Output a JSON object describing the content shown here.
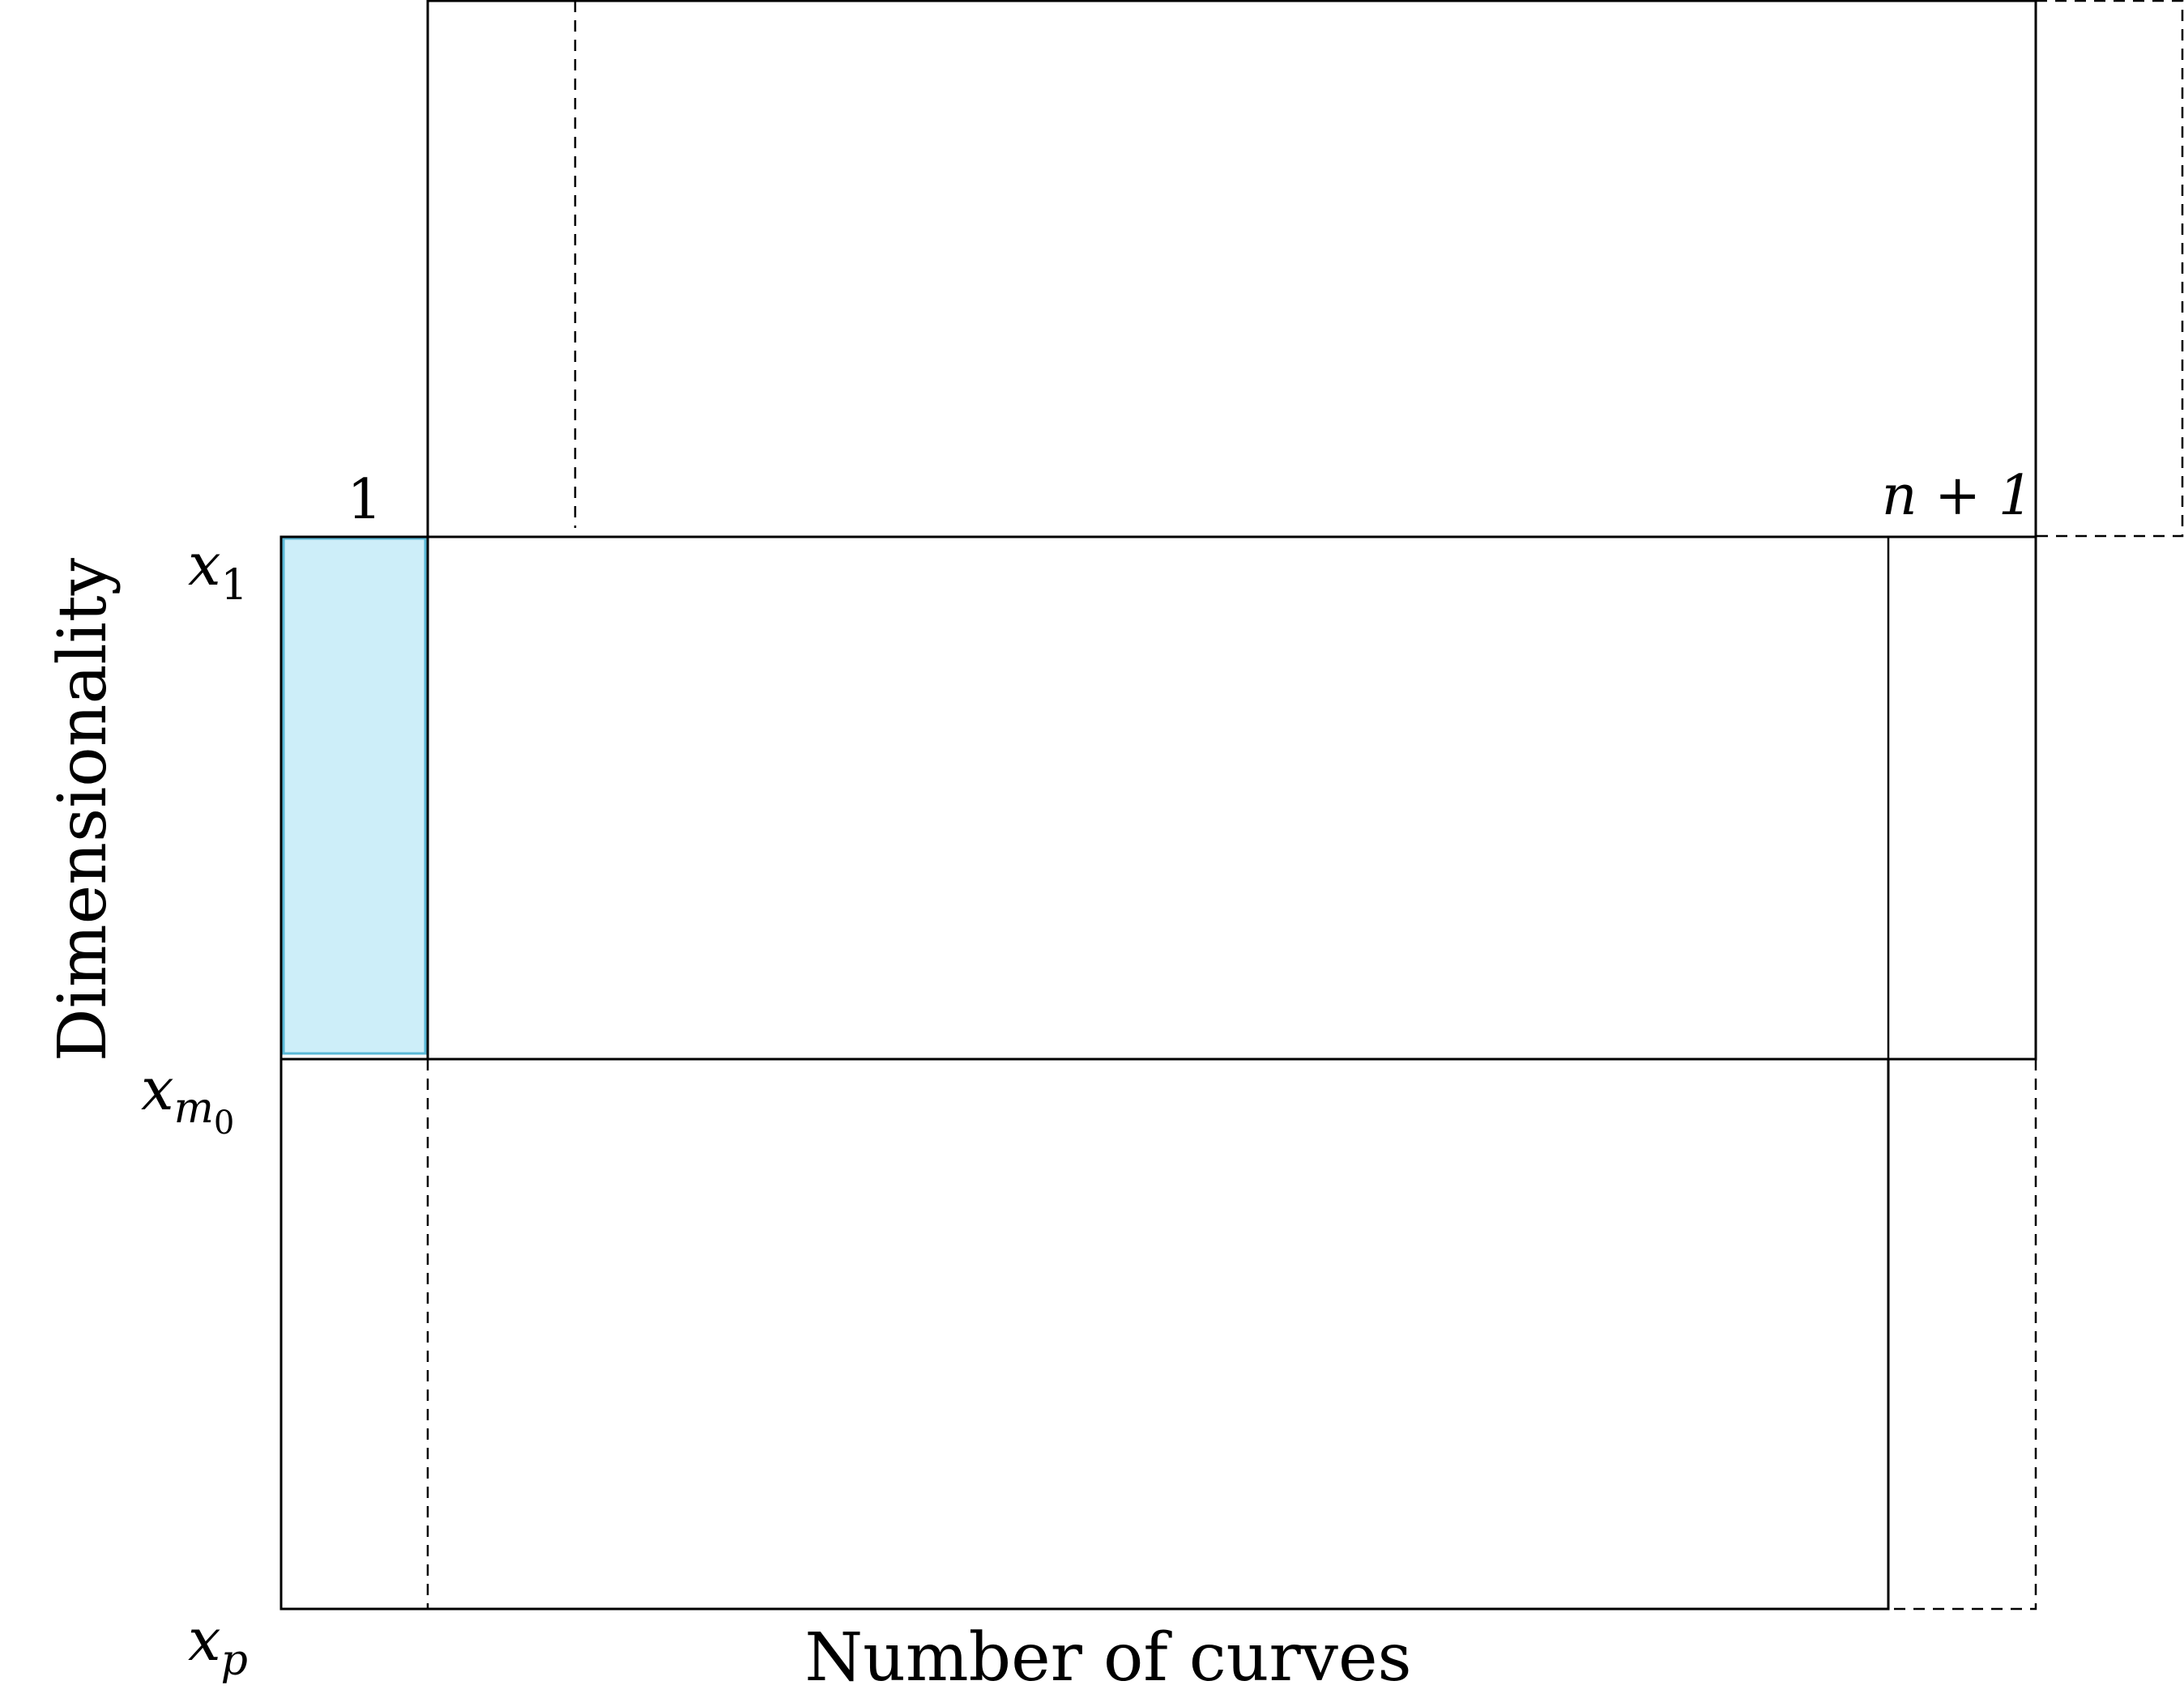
{
  "labels": {
    "col_first": "1",
    "col_last": "n + 1",
    "row_x1": "x",
    "row_x1_sub": "1",
    "row_xm0": "x",
    "row_xm0_sub": "m",
    "row_xm0_subsub": "0",
    "row_xp": "x",
    "row_xp_sub": "p",
    "y_axis": "Dimensionality",
    "x_axis": "Number of curves"
  },
  "colors": {
    "highlight_fill": "#cdeef9",
    "highlight_stroke": "#5ab8d6",
    "line": "#000000"
  }
}
